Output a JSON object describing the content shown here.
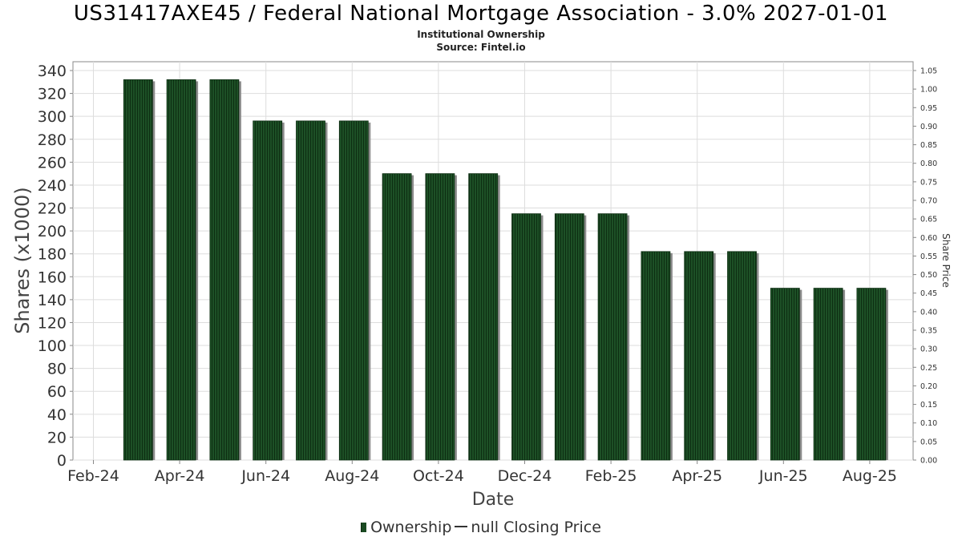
{
  "chart_data": {
    "type": "bar",
    "title": "US31417AXE45 / Federal National Mortgage Association - 3.0% 2027-01-01",
    "subtitle_1": "Institutional Ownership",
    "subtitle_2": "Source: Fintel.io",
    "xlabel": "Date",
    "ylabel": "Shares (x1000)",
    "y2label": "Share Price",
    "x_tick_labels": [
      "Feb-24",
      "Apr-24",
      "Jun-24",
      "Aug-24",
      "Oct-24",
      "Dec-24",
      "Feb-25",
      "Apr-25",
      "Jun-25",
      "Aug-25"
    ],
    "categories": [
      "2024-03",
      "2024-04",
      "2024-05",
      "2024-06",
      "2024-07",
      "2024-08",
      "2024-09",
      "2024-10",
      "2024-11",
      "2024-12",
      "2025-01",
      "2025-02",
      "2025-03",
      "2025-04",
      "2025-05",
      "2025-06",
      "2025-07",
      "2025-08"
    ],
    "series": [
      {
        "name": "Ownership",
        "values": [
          332,
          332,
          332,
          296,
          296,
          296,
          250,
          250,
          250,
          215,
          215,
          215,
          182,
          182,
          182,
          150,
          150,
          150
        ]
      }
    ],
    "ylim": [
      0,
      340
    ],
    "y_ticks": [
      "0",
      "20",
      "40",
      "60",
      "80",
      "100",
      "120",
      "140",
      "160",
      "180",
      "200",
      "220",
      "240",
      "260",
      "280",
      "300",
      "320",
      "340"
    ],
    "y2lim": [
      0,
      1.05
    ],
    "y2_ticks": [
      "0.00",
      "0.05",
      "0.10",
      "0.15",
      "0.20",
      "0.25",
      "0.30",
      "0.35",
      "0.40",
      "0.45",
      "0.50",
      "0.55",
      "0.60",
      "0.65",
      "0.70",
      "0.75",
      "0.80",
      "0.85",
      "0.90",
      "0.95",
      "1.00",
      "1.05"
    ],
    "grid": true,
    "legend_position": "bottom",
    "legend": {
      "ownership_label": "Ownership",
      "price_label": "null Closing Price"
    },
    "colors": {
      "bar": "#1a4a22",
      "bar_stripe": "#0d2e12",
      "bar_shadow": "#8c8c8c",
      "grid": "#dddddd",
      "axis": "#888888"
    }
  }
}
